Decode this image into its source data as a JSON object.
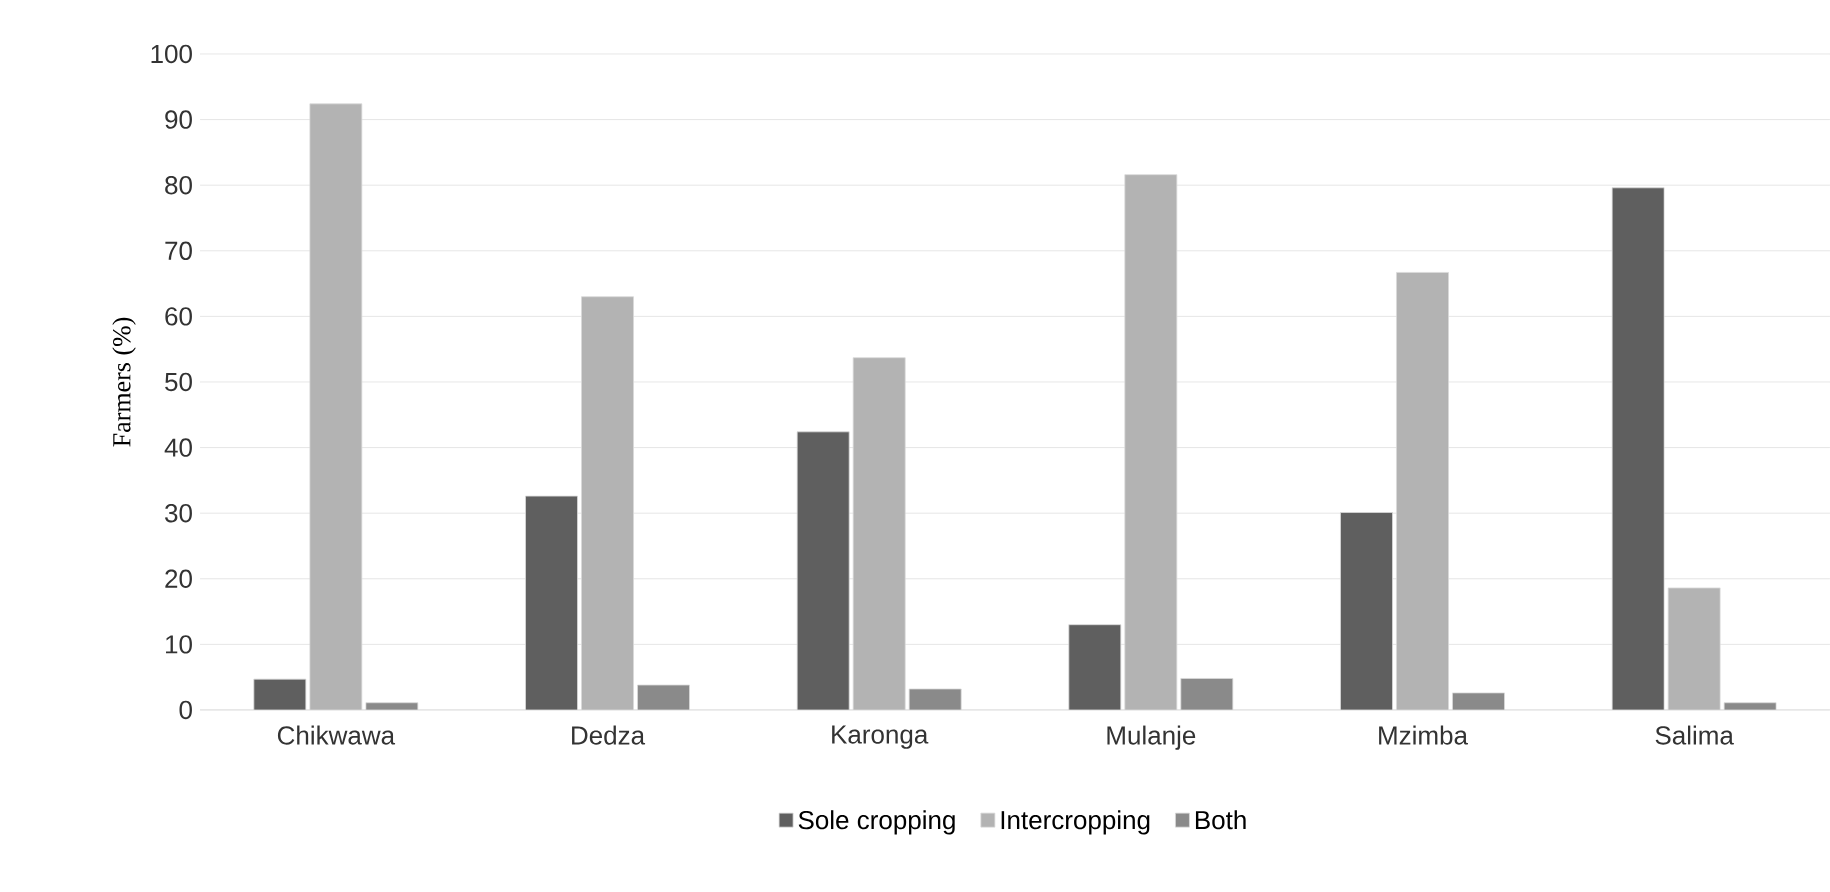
{
  "chart_data": {
    "type": "bar",
    "ylabel": "Farmers (%)",
    "categories": [
      "Chikwawa",
      "Dedza",
      "Karonga",
      "Mulanje",
      "Mzimba",
      "Salima"
    ],
    "series": [
      {
        "name": "Sole cropping",
        "color": "#5f5f5f",
        "values": [
          4.7,
          32.6,
          42.4,
          13.0,
          30.1,
          79.6
        ]
      },
      {
        "name": "Intercropping",
        "color": "#b3b3b3",
        "values": [
          92.4,
          63.0,
          53.7,
          81.6,
          66.7,
          18.6
        ]
      },
      {
        "name": "Both",
        "color": "#8a8a8a",
        "values": [
          1.1,
          3.8,
          3.2,
          4.8,
          2.6,
          1.1
        ]
      }
    ],
    "ylim": [
      0,
      100
    ],
    "yticks": [
      0,
      10,
      20,
      30,
      40,
      50,
      60,
      70,
      80,
      90,
      100
    ],
    "grid": "y",
    "legend": "bottom"
  }
}
